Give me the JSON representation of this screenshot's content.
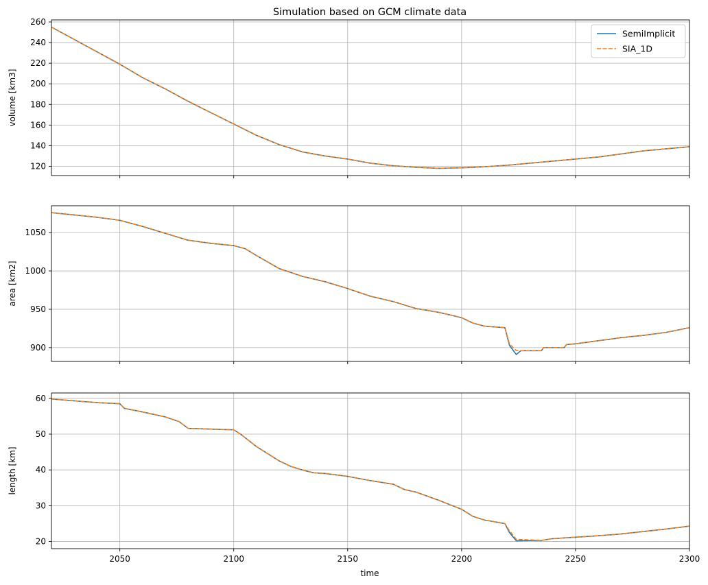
{
  "chart_data": {
    "type": "line",
    "title": "Simulation based on GCM climate data",
    "xlabel": "time",
    "xlim": [
      2020,
      2300
    ],
    "xticks": [
      2050,
      2100,
      2150,
      2200,
      2250,
      2300
    ],
    "grid": true,
    "legend": {
      "placement": "top-right",
      "entries": [
        "SemiImplicit",
        "SIA_1D"
      ]
    },
    "colors": {
      "SemiImplicit": "#1f77b4",
      "SIA_1D": "#ff7f0e"
    },
    "panels": [
      {
        "ylabel": "volume [km3]",
        "ylim": [
          111,
          262
        ],
        "yticks": [
          120,
          140,
          160,
          180,
          200,
          220,
          240,
          260
        ],
        "x": [
          2020,
          2030,
          2040,
          2050,
          2060,
          2070,
          2080,
          2090,
          2100,
          2110,
          2120,
          2130,
          2140,
          2150,
          2160,
          2170,
          2180,
          2190,
          2200,
          2210,
          2220,
          2230,
          2240,
          2250,
          2260,
          2270,
          2280,
          2290,
          2300
        ],
        "series": [
          {
            "name": "SemiImplicit",
            "values": [
              255,
              243,
              231,
              219,
              206,
              195,
              183,
              172,
              161,
              150,
              141,
              134,
              130,
              127,
              123,
              120.5,
              119,
              118,
              118.5,
              119.5,
              121,
              123,
              125,
              127,
              129,
              132,
              135,
              137,
              139
            ]
          },
          {
            "name": "SIA_1D",
            "values": [
              255,
              243,
              231,
              219,
              206,
              195,
              183,
              172,
              161,
              150,
              141,
              134,
              130,
              127,
              123,
              120.5,
              119,
              118,
              118.5,
              119.5,
              121,
              123,
              125,
              127,
              129,
              132,
              135,
              137,
              139
            ]
          }
        ]
      },
      {
        "ylabel": "area [km2]",
        "ylim": [
          882,
          1085
        ],
        "yticks": [
          900,
          950,
          1000,
          1050
        ],
        "x": [
          2020,
          2030,
          2040,
          2050,
          2060,
          2070,
          2080,
          2090,
          2100,
          2105,
          2110,
          2120,
          2130,
          2140,
          2150,
          2160,
          2170,
          2180,
          2190,
          2200,
          2205,
          2210,
          2219,
          2221,
          2224,
          2226,
          2235,
          2236,
          2245,
          2246,
          2250,
          2260,
          2270,
          2280,
          2290,
          2300
        ],
        "series": [
          {
            "name": "SemiImplicit",
            "values": [
              1076,
              1073,
              1070,
              1066,
              1058,
              1049,
              1040,
              1036,
              1033,
              1029,
              1020,
              1003,
              993,
              986,
              977,
              967,
              960,
              951,
              946,
              939,
              932,
              928,
              926,
              903,
              891,
              896,
              896,
              900,
              900,
              904,
              905,
              909,
              913,
              916,
              920,
              926
            ]
          },
          {
            "name": "SIA_1D",
            "values": [
              1076,
              1073,
              1070,
              1066,
              1058,
              1049,
              1040,
              1036,
              1033,
              1029,
              1020,
              1003,
              993,
              986,
              977,
              967,
              960,
              951,
              946,
              939,
              932,
              928,
              926,
              905,
              896,
              896,
              896,
              900,
              900,
              904,
              905,
              909,
              913,
              916,
              920,
              926
            ]
          }
        ]
      },
      {
        "ylabel": "length [km]",
        "ylim": [
          18,
          61.5
        ],
        "yticks": [
          20,
          30,
          40,
          50,
          60
        ],
        "x": [
          2020,
          2030,
          2040,
          2050,
          2052,
          2060,
          2070,
          2076,
          2080,
          2090,
          2100,
          2103,
          2110,
          2120,
          2125,
          2130,
          2135,
          2140,
          2150,
          2160,
          2170,
          2175,
          2180,
          2190,
          2200,
          2205,
          2210,
          2219,
          2221,
          2224,
          2235,
          2240,
          2250,
          2260,
          2270,
          2280,
          2290,
          2300
        ],
        "series": [
          {
            "name": "SemiImplicit",
            "values": [
              59.8,
              59.3,
              58.8,
              58.5,
              57.2,
              56.2,
              54.8,
              53.5,
              51.6,
              51.4,
              51.2,
              50.0,
              46.5,
              42.5,
              41.0,
              40.0,
              39.2,
              39.0,
              38.2,
              37.0,
              36.0,
              34.5,
              33.8,
              31.5,
              29.0,
              27.0,
              26.0,
              25.0,
              22.5,
              20.2,
              20.3,
              20.8,
              21.2,
              21.6,
              22.1,
              22.8,
              23.5,
              24.3
            ]
          },
          {
            "name": "SIA_1D",
            "values": [
              59.8,
              59.3,
              58.8,
              58.5,
              57.2,
              56.2,
              54.8,
              53.5,
              51.6,
              51.4,
              51.2,
              50.0,
              46.5,
              42.5,
              41.0,
              40.0,
              39.2,
              39.0,
              38.2,
              37.0,
              36.0,
              34.5,
              33.8,
              31.5,
              29.0,
              27.0,
              26.0,
              25.0,
              23.0,
              20.6,
              20.3,
              20.8,
              21.2,
              21.6,
              22.1,
              22.8,
              23.5,
              24.3
            ]
          }
        ]
      }
    ]
  }
}
